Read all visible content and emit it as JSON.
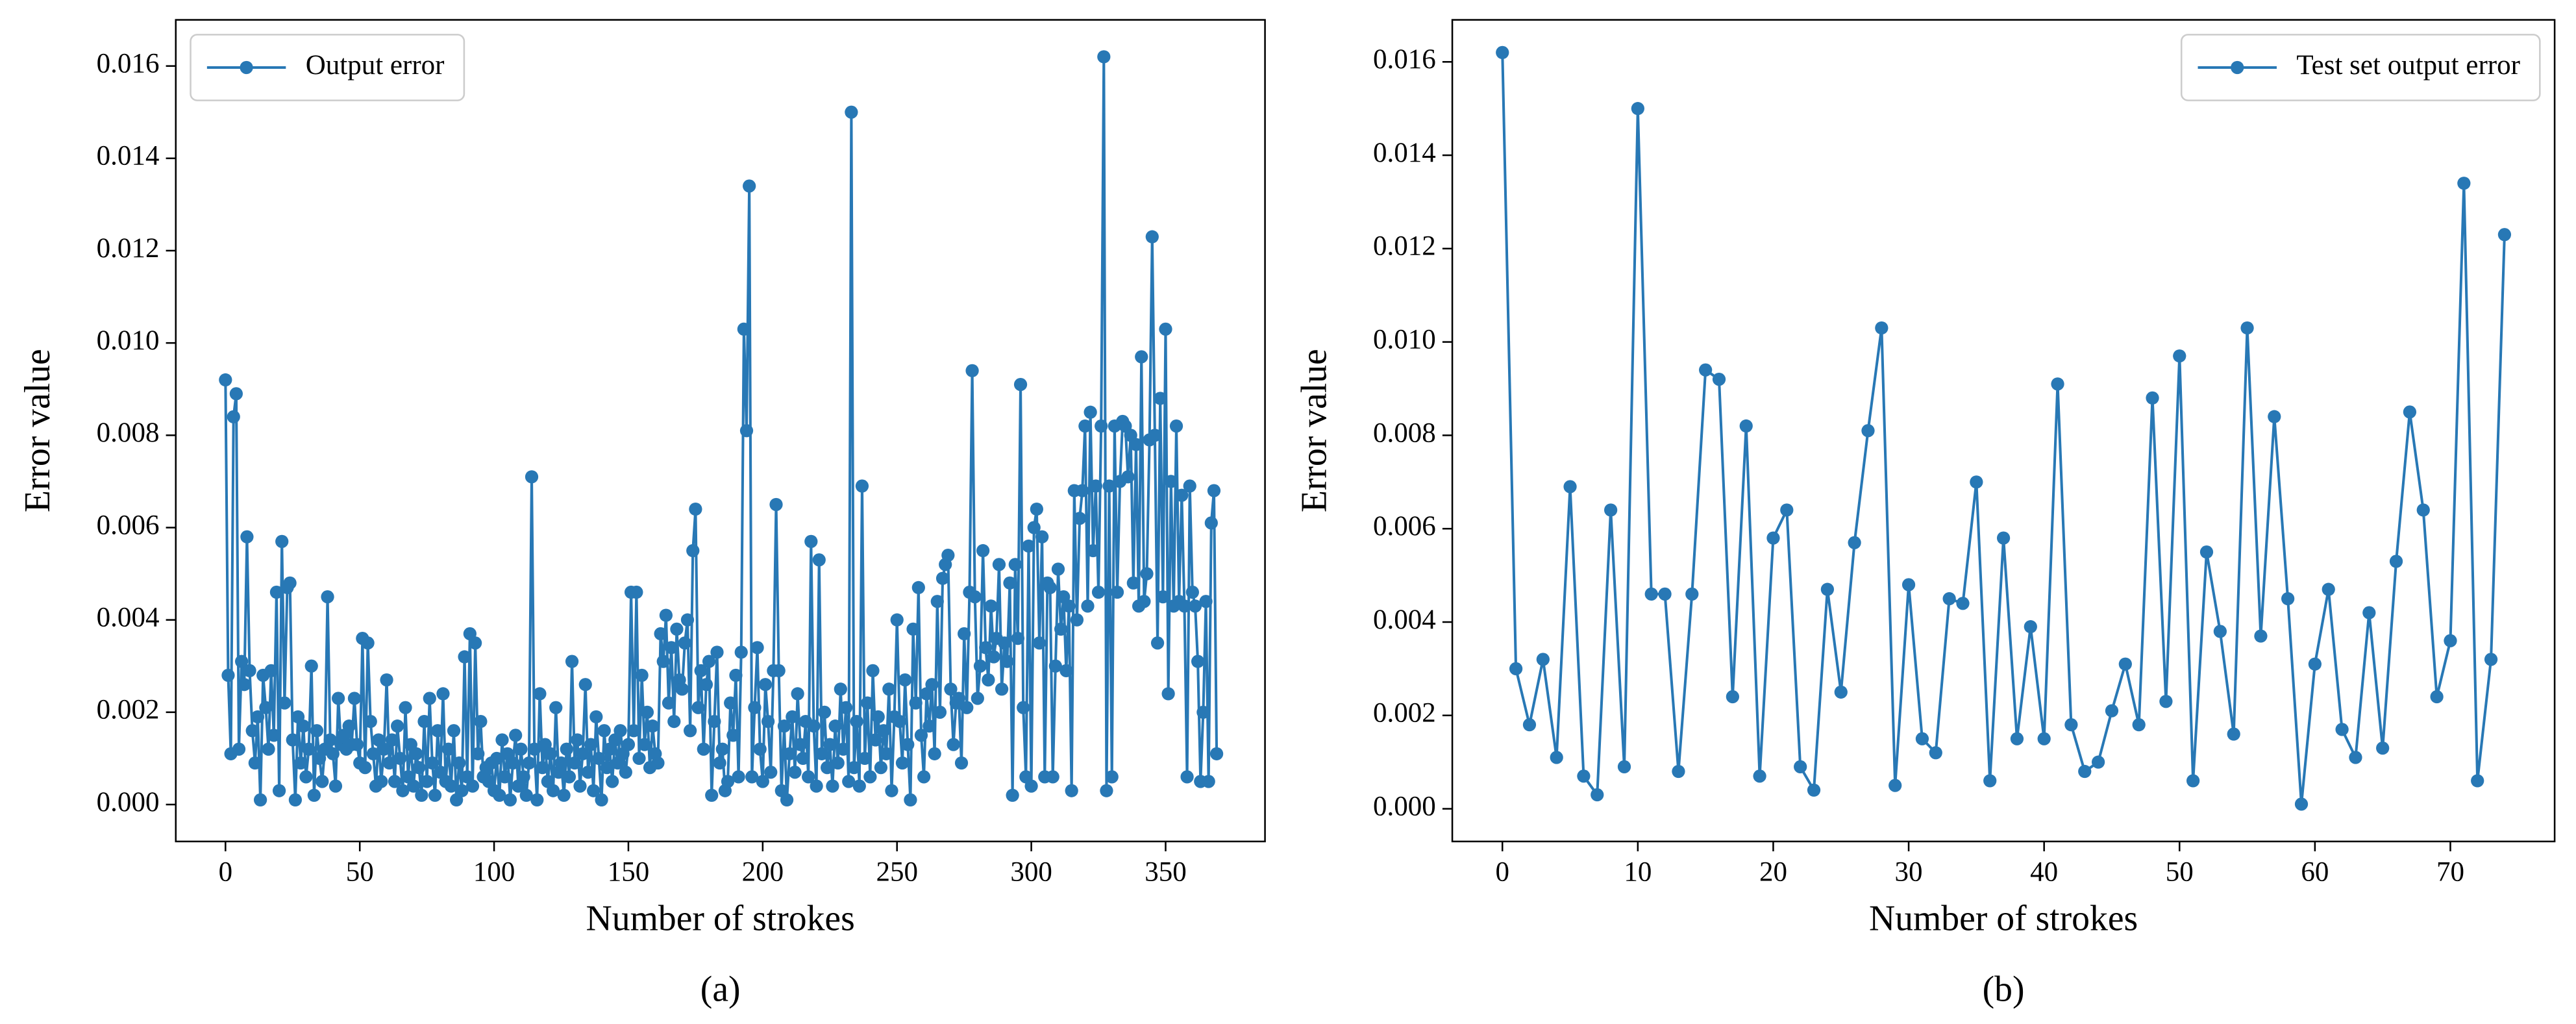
{
  "chart_data": [
    {
      "type": "line",
      "caption": "(a)",
      "xlabel": "Number of strokes",
      "ylabel": "Error value",
      "legend": "upper left",
      "xlim": [
        -18.5,
        387
      ],
      "xticks": [
        0,
        50,
        100,
        150,
        200,
        250,
        300,
        350
      ],
      "ylim": [
        -0.0008,
        0.017
      ],
      "yticks": [
        {
          "value": 0,
          "label": "0.000"
        },
        {
          "value": 0.002,
          "label": "0.002"
        },
        {
          "value": 0.004,
          "label": "0.004"
        },
        {
          "value": 0.006,
          "label": "0.006"
        },
        {
          "value": 0.008,
          "label": "0.008"
        },
        {
          "value": 0.01,
          "label": "0.010"
        },
        {
          "value": 0.012,
          "label": "0.012"
        },
        {
          "value": 0.014,
          "label": "0.014"
        },
        {
          "value": 0.016,
          "label": "0.016"
        }
      ],
      "series": [
        {
          "name": "Output error",
          "color": "#2878b5",
          "values": [
            0.0092,
            0.0028,
            0.0011,
            0.0084,
            0.0089,
            0.0012,
            0.0031,
            0.0026,
            0.0058,
            0.0029,
            0.0016,
            0.0009,
            0.0019,
            0.0001,
            0.0028,
            0.0021,
            0.0012,
            0.0029,
            0.0015,
            0.0046,
            0.0003,
            0.0057,
            0.0022,
            0.0047,
            0.0048,
            0.0014,
            0.0001,
            0.0019,
            0.0009,
            0.0017,
            0.0006,
            0.0012,
            0.003,
            0.0002,
            0.0016,
            0.001,
            0.0005,
            0.0012,
            0.0045,
            0.0014,
            0.0011,
            0.0004,
            0.0023,
            0.0013,
            0.0015,
            0.0012,
            0.0017,
            0.0013,
            0.0023,
            0.0013,
            0.0009,
            0.0036,
            0.0008,
            0.0035,
            0.0018,
            0.0011,
            0.0004,
            0.0014,
            0.0005,
            0.0012,
            0.0027,
            0.0009,
            0.0014,
            0.0005,
            0.0017,
            0.001,
            0.0003,
            0.0021,
            0.0006,
            0.0013,
            0.0004,
            0.0011,
            0.0008,
            0.0002,
            0.0018,
            0.0005,
            0.0023,
            0.0009,
            0.0002,
            0.0016,
            0.0007,
            0.0024,
            0.0005,
            0.0012,
            0.0004,
            0.0016,
            0.0001,
            0.0009,
            0.0003,
            0.0032,
            0.0006,
            0.0037,
            0.0004,
            0.0035,
            0.0011,
            0.0018,
            0.0006,
            0.0008,
            0.0005,
            0.0009,
            0.0003,
            0.001,
            0.0002,
            0.0014,
            0.0006,
            0.0011,
            0.0001,
            0.0009,
            0.0015,
            0.0004,
            0.0012,
            0.0006,
            0.0002,
            0.0009,
            0.0071,
            0.0012,
            0.0001,
            0.0024,
            0.0008,
            0.0013,
            0.0005,
            0.0011,
            0.0003,
            0.0021,
            0.0007,
            0.0009,
            0.0002,
            0.0012,
            0.0006,
            0.0031,
            0.0009,
            0.0014,
            0.0004,
            0.0011,
            0.0026,
            0.0007,
            0.0013,
            0.0003,
            0.0019,
            0.001,
            0.0001,
            0.0016,
            0.0008,
            0.0012,
            0.0005,
            0.0014,
            0.0009,
            0.0016,
            0.0011,
            0.0007,
            0.0013,
            0.0046,
            0.0016,
            0.0046,
            0.001,
            0.0028,
            0.0013,
            0.002,
            0.0008,
            0.0017,
            0.0011,
            0.0009,
            0.0037,
            0.0031,
            0.0041,
            0.0022,
            0.0034,
            0.0018,
            0.0038,
            0.0027,
            0.0025,
            0.0035,
            0.004,
            0.0016,
            0.0055,
            0.0064,
            0.0021,
            0.0029,
            0.0012,
            0.0026,
            0.0031,
            0.0002,
            0.0018,
            0.0033,
            0.0009,
            0.0012,
            0.0003,
            0.0005,
            0.0022,
            0.0015,
            0.0028,
            0.0006,
            0.0033,
            0.0103,
            0.0081,
            0.0134,
            0.0006,
            0.0021,
            0.0034,
            0.0012,
            0.0005,
            0.0026,
            0.0018,
            0.0007,
            0.0029,
            0.0065,
            0.0029,
            0.0003,
            0.0017,
            0.0001,
            0.0011,
            0.0019,
            0.0007,
            0.0024,
            0.0013,
            0.001,
            0.0018,
            0.0006,
            0.0057,
            0.0017,
            0.0004,
            0.0053,
            0.0011,
            0.002,
            0.0008,
            0.0013,
            0.0004,
            0.0017,
            0.0009,
            0.0025,
            0.0012,
            0.0021,
            0.0005,
            0.015,
            0.0008,
            0.0018,
            0.0004,
            0.0069,
            0.001,
            0.0022,
            0.0006,
            0.0029,
            0.0014,
            0.0019,
            0.0008,
            0.0016,
            0.0011,
            0.0025,
            0.0003,
            0.0019,
            0.004,
            0.0018,
            0.0009,
            0.0027,
            0.0013,
            0.0001,
            0.0038,
            0.0022,
            0.0047,
            0.0015,
            0.0006,
            0.0024,
            0.0017,
            0.0026,
            0.0011,
            0.0044,
            0.002,
            0.0049,
            0.0052,
            0.0054,
            0.0025,
            0.0013,
            0.0022,
            0.0023,
            0.0009,
            0.0037,
            0.0021,
            0.0046,
            0.0094,
            0.0045,
            0.0023,
            0.003,
            0.0055,
            0.0034,
            0.0027,
            0.0043,
            0.0032,
            0.0036,
            0.0052,
            0.0025,
            0.0035,
            0.0031,
            0.0048,
            0.0002,
            0.0052,
            0.0036,
            0.0091,
            0.0021,
            0.0006,
            0.0056,
            0.0004,
            0.006,
            0.0064,
            0.0035,
            0.0058,
            0.0006,
            0.0048,
            0.0047,
            0.0006,
            0.003,
            0.0051,
            0.0038,
            0.0045,
            0.0029,
            0.0043,
            0.0003,
            0.0068,
            0.004,
            0.0062,
            0.0068,
            0.0082,
            0.0043,
            0.0085,
            0.0055,
            0.0069,
            0.0046,
            0.0082,
            0.0162,
            0.0003,
            0.0069,
            0.0006,
            0.0082,
            0.0046,
            0.007,
            0.0083,
            0.0082,
            0.0071,
            0.008,
            0.0048,
            0.0078,
            0.0043,
            0.0097,
            0.0044,
            0.005,
            0.0079,
            0.0123,
            0.008,
            0.0035,
            0.0088,
            0.0045,
            0.0103,
            0.0024,
            0.007,
            0.0043,
            0.0082,
            0.0044,
            0.0067,
            0.0043,
            0.0006,
            0.0069,
            0.0046,
            0.0043,
            0.0031,
            0.0005,
            0.002,
            0.0044,
            0.0005,
            0.0061,
            0.0068,
            0.0011
          ]
        }
      ]
    },
    {
      "type": "line",
      "caption": "(b)",
      "xlabel": "Number of strokes",
      "ylabel": "Error value",
      "legend": "upper right",
      "xlim": [
        -3.7,
        77.7
      ],
      "xticks": [
        0,
        10,
        20,
        30,
        40,
        50,
        60,
        70
      ],
      "ylim": [
        -0.0007,
        0.0169
      ],
      "yticks": [
        {
          "value": 0,
          "label": "0.000"
        },
        {
          "value": 0.002,
          "label": "0.002"
        },
        {
          "value": 0.004,
          "label": "0.004"
        },
        {
          "value": 0.006,
          "label": "0.006"
        },
        {
          "value": 0.008,
          "label": "0.008"
        },
        {
          "value": 0.01,
          "label": "0.010"
        },
        {
          "value": 0.012,
          "label": "0.012"
        },
        {
          "value": 0.014,
          "label": "0.014"
        },
        {
          "value": 0.016,
          "label": "0.016"
        }
      ],
      "series": [
        {
          "name": "Test set output error",
          "color": "#2878b5",
          "values": [
            0.0162,
            0.003,
            0.0018,
            0.0032,
            0.0011,
            0.0069,
            0.0007,
            0.0003,
            0.0064,
            0.0009,
            0.015,
            0.0046,
            0.0046,
            0.0008,
            0.0046,
            0.0094,
            0.0092,
            0.0024,
            0.0082,
            0.0007,
            0.0058,
            0.0064,
            0.0009,
            0.0004,
            0.0047,
            0.0025,
            0.0057,
            0.0081,
            0.0103,
            0.0005,
            0.0048,
            0.0015,
            0.0012,
            0.0045,
            0.0044,
            0.007,
            0.0006,
            0.0058,
            0.0015,
            0.0039,
            0.0015,
            0.0091,
            0.0018,
            0.0008,
            0.001,
            0.0021,
            0.0031,
            0.0018,
            0.0088,
            0.0023,
            0.0097,
            0.0006,
            0.0055,
            0.0038,
            0.0016,
            0.0103,
            0.0037,
            0.0084,
            0.0045,
            0.0001,
            0.0031,
            0.0047,
            0.0017,
            0.0011,
            0.0042,
            0.0013,
            0.0053,
            0.0085,
            0.0064,
            0.0024,
            0.0036,
            0.0134,
            0.0006,
            0.0032,
            0.0123
          ]
        }
      ]
    }
  ]
}
